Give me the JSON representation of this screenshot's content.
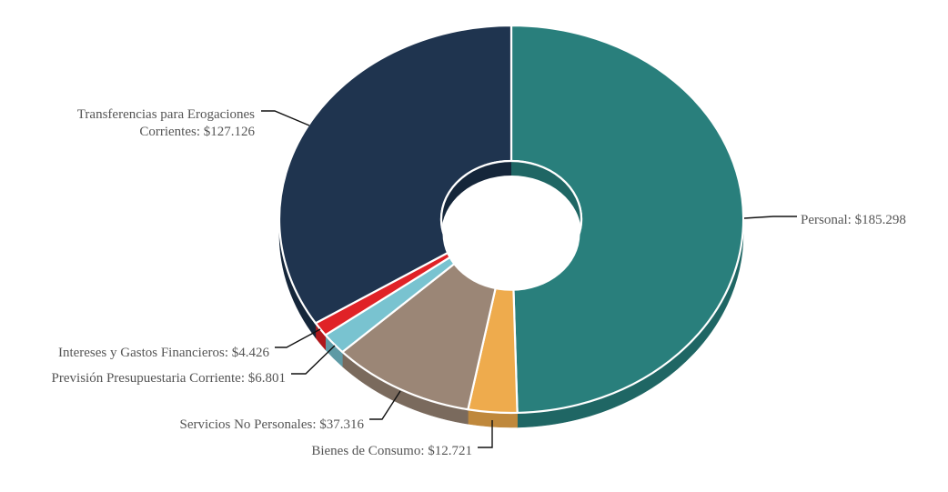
{
  "chart_data": {
    "type": "pie",
    "variant": "3d-donut",
    "start": "12 o'clock, clockwise",
    "legend": "none",
    "slices": [
      {
        "label": "Personal",
        "value_text": "$185.298",
        "value": 185.298,
        "color": "#297f7c",
        "side_color": "#1f6664"
      },
      {
        "label": "Bienes de Consumo",
        "value_text": "$12.721",
        "value": 12.721,
        "color": "#eeab4d",
        "side_color": "#bf883c"
      },
      {
        "label": "Servicios No Personales",
        "value_text": "$37.316",
        "value": 37.316,
        "color": "#9b8676",
        "side_color": "#7a6a5d"
      },
      {
        "label": "Previsión Presupuestaria Corriente",
        "value_text": "$6.801",
        "value": 6.801,
        "color": "#79c3d0",
        "side_color": "#5e9aa5"
      },
      {
        "label": "Intereses y Gastos Financieros",
        "value_text": "$4.426",
        "value": 4.426,
        "color": "#e02227",
        "side_color": "#b0181c"
      },
      {
        "label": "Transferencias para Erogaciones Corrientes",
        "value_text": "$127.126",
        "value": 127.126,
        "color": "#1f344f",
        "side_color": "#15263a"
      }
    ],
    "labels": [
      {
        "lines": [
          "Personal: $185.298"
        ]
      },
      {
        "lines": [
          "Bienes de Consumo: $12.721"
        ]
      },
      {
        "lines": [
          "Servicios No Personales: $37.316"
        ]
      },
      {
        "lines": [
          "Previsión Presupuestaria Corriente: $6.801"
        ]
      },
      {
        "lines": [
          "Intereses y Gastos Financieros: $4.426"
        ]
      },
      {
        "lines": [
          "Transferencias para Erogaciones",
          "Corrientes: $127.126"
        ]
      }
    ]
  }
}
